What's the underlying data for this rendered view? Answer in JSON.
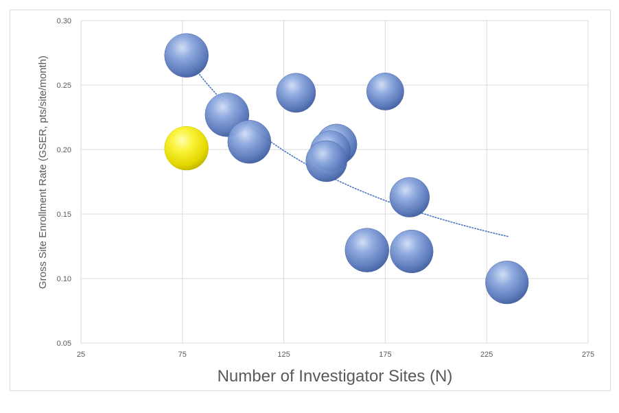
{
  "chart_data": {
    "type": "scatter",
    "title": "",
    "xlabel": "Number of Investigator Sites (N)",
    "ylabel": "Gross Site Enrollment Rate (GSER, pts/site/month)",
    "xlim": [
      25,
      275
    ],
    "ylim": [
      0.05,
      0.3
    ],
    "xticks": [
      25,
      75,
      125,
      175,
      225,
      275
    ],
    "yticks": [
      0.05,
      0.1,
      0.15,
      0.2,
      0.25,
      0.3
    ],
    "xtick_labels": [
      "25",
      "75",
      "125",
      "175",
      "225",
      "275"
    ],
    "ytick_labels": [
      "0.05",
      "0.10",
      "0.15",
      "0.20",
      "0.25",
      "0.30"
    ],
    "grid": true,
    "legend": "none",
    "colors": {
      "bubble": "#6f8fd0",
      "highlight": "#f2ea00",
      "trendline": "#4472c4",
      "grid": "#d9d9d9"
    },
    "points": [
      {
        "x": 77,
        "y": 0.273,
        "size": 1.0,
        "highlight": false
      },
      {
        "x": 97,
        "y": 0.227,
        "size": 1.0,
        "highlight": false
      },
      {
        "x": 108,
        "y": 0.206,
        "size": 0.97,
        "highlight": false
      },
      {
        "x": 131,
        "y": 0.244,
        "size": 0.8,
        "highlight": false
      },
      {
        "x": 175,
        "y": 0.245,
        "size": 0.72,
        "highlight": false
      },
      {
        "x": 151,
        "y": 0.204,
        "size": 0.86,
        "highlight": false
      },
      {
        "x": 148,
        "y": 0.199,
        "size": 0.84,
        "highlight": false
      },
      {
        "x": 146,
        "y": 0.191,
        "size": 0.88,
        "highlight": false
      },
      {
        "x": 187,
        "y": 0.163,
        "size": 0.82,
        "highlight": false
      },
      {
        "x": 166,
        "y": 0.122,
        "size": 1.0,
        "highlight": false
      },
      {
        "x": 188,
        "y": 0.121,
        "size": 0.96,
        "highlight": false
      },
      {
        "x": 235,
        "y": 0.097,
        "size": 0.96,
        "highlight": false
      },
      {
        "x": 77,
        "y": 0.201,
        "size": 1.0,
        "highlight": true
      }
    ],
    "trendline": {
      "type": "power",
      "style": "dotted",
      "x_start": 77,
      "x_end": 236,
      "a": 4.42,
      "b": -0.642
    }
  }
}
